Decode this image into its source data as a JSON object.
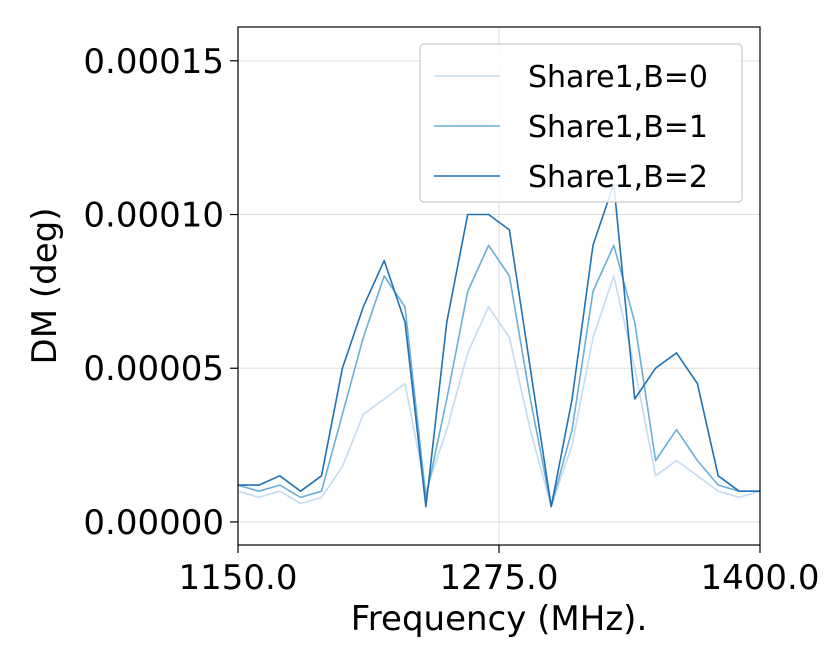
{
  "chart_data": {
    "type": "line",
    "title": "",
    "xlabel": "Frequency (MHz).",
    "ylabel": "DM (deg)",
    "xlim": [
      1150,
      1400
    ],
    "ylim": [
      -7.5e-06,
      0.000161
    ],
    "xticks": [
      1150,
      1275,
      1400
    ],
    "xtick_labels": [
      "1150.0",
      "1275.0",
      "1400.0"
    ],
    "yticks": [
      0,
      5e-05,
      0.0001,
      0.00015
    ],
    "ytick_labels": [
      "0.00000",
      "0.00005",
      "0.00010",
      "0.00015"
    ],
    "grid": true,
    "legend_position": "top-right",
    "x": [
      1150,
      1160,
      1170,
      1180,
      1190,
      1200,
      1210,
      1220,
      1230,
      1240,
      1250,
      1260,
      1270,
      1280,
      1290,
      1300,
      1310,
      1320,
      1330,
      1340,
      1350,
      1360,
      1370,
      1380,
      1390,
      1400
    ],
    "series": [
      {
        "name": "Share1,B=0",
        "color": "#c6dbef",
        "values": [
          1e-05,
          8e-06,
          1e-05,
          6e-06,
          8e-06,
          1.8e-05,
          3.5e-05,
          4e-05,
          4.5e-05,
          1e-05,
          3e-05,
          5.5e-05,
          7e-05,
          6e-05,
          3e-05,
          5e-06,
          2.5e-05,
          6e-05,
          8e-05,
          5e-05,
          1.5e-05,
          2e-05,
          1.5e-05,
          1e-05,
          8e-06,
          1e-05
        ]
      },
      {
        "name": "Share1,B=1",
        "color": "#6baed6",
        "values": [
          1.2e-05,
          1e-05,
          1.2e-05,
          8e-06,
          1e-05,
          3.5e-05,
          6e-05,
          8e-05,
          7e-05,
          8e-06,
          4e-05,
          7.5e-05,
          9e-05,
          8e-05,
          4e-05,
          5e-06,
          3e-05,
          7.5e-05,
          9e-05,
          6.5e-05,
          2e-05,
          3e-05,
          2e-05,
          1.2e-05,
          1e-05,
          1e-05
        ]
      },
      {
        "name": "Share1,B=2",
        "color": "#2171b5",
        "values": [
          1.2e-05,
          1.2e-05,
          1.5e-05,
          1e-05,
          1.5e-05,
          5e-05,
          7e-05,
          8.5e-05,
          6.5e-05,
          5e-06,
          6.5e-05,
          0.0001,
          0.0001,
          9.5e-05,
          5e-05,
          5e-06,
          4e-05,
          9e-05,
          0.00011,
          4e-05,
          5e-05,
          5.5e-05,
          4.5e-05,
          1.5e-05,
          1e-05,
          1e-05
        ]
      }
    ]
  }
}
